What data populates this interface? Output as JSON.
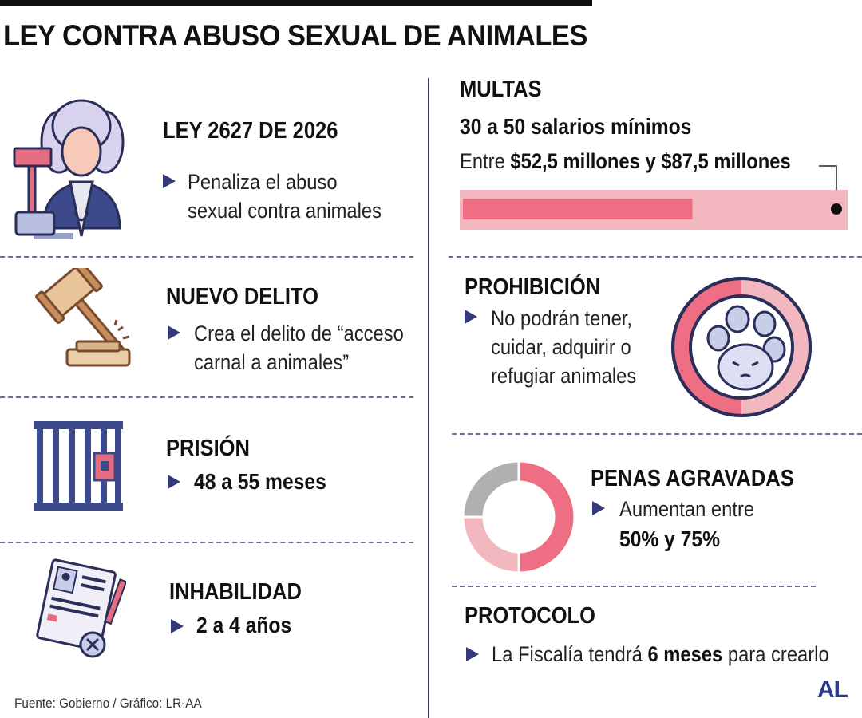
{
  "title": "LEY CONTRA ABUSO SEXUAL DE ANIMALES",
  "left": {
    "law": {
      "heading": "LEY 2627 DE 2026",
      "lines": [
        "Penaliza el abuso",
        "sexual contra animales"
      ],
      "icon": "judge-icon"
    },
    "crime": {
      "heading": "NUEVO DELITO",
      "lines": [
        "Crea el delito de “acceso",
        "carnal a animales”"
      ],
      "icon": "gavel-icon"
    },
    "prison": {
      "heading": "PRISIÓN",
      "value": "48 a 55 meses",
      "icon": "prison-bars-icon"
    },
    "disability": {
      "heading": "INHABILIDAD",
      "value": "2 a 4 años",
      "icon": "document-cancel-icon"
    }
  },
  "right": {
    "fines": {
      "heading": "MULTAS",
      "salaries": "30 a 50 salarios mínimos",
      "range_prefix": "Entre ",
      "range_bold": "$52,5 millones y $87,5 millones",
      "min_millions": 52.5,
      "max_millions": 87.5
    },
    "prohibition": {
      "heading": "PROHIBICIÓN",
      "lines": [
        "No podrán tener,",
        "cuidar, adquirir o",
        "refugiar animales"
      ],
      "icon": "no-pets-icon"
    },
    "aggravated": {
      "heading": "PENAS AGRAVADAS",
      "line1": "Aumentan entre",
      "line2": "50% y 75%",
      "donut_percent": [
        50,
        75
      ],
      "icon": "donut-icon"
    },
    "protocol": {
      "heading": "PROTOCOLO",
      "prefix": "La Fiscalía tendrá ",
      "bold": "6 meses",
      "suffix": " para crearlo"
    }
  },
  "footer": "Fuente: Gobierno / Gráfico: LR-AA",
  "logo": "AL",
  "colors": {
    "pink": "#ee6e84",
    "light_pink": "#f2b7bf",
    "navy": "#33397a",
    "gray": "#b0b0b0"
  }
}
